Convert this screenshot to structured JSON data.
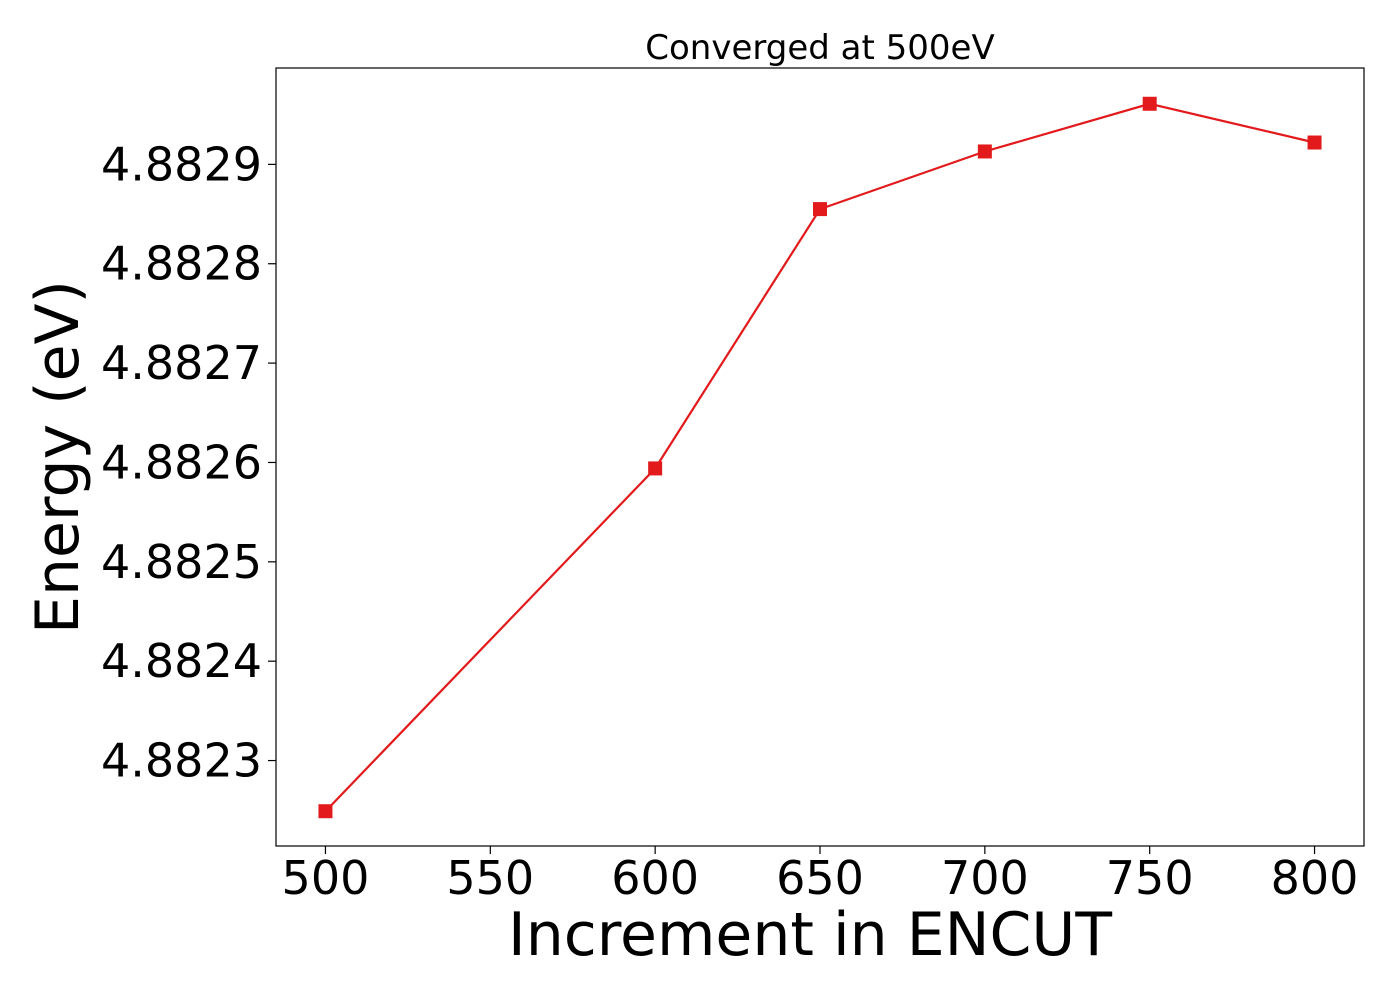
{
  "chart_data": {
    "type": "line",
    "title": "Converged at 500eV",
    "xlabel": "Increment in ENCUT",
    "ylabel": "Energy (eV)",
    "x": [
      500,
      600,
      650,
      700,
      750,
      800
    ],
    "series": [
      {
        "values": [
          4.882249,
          4.882594,
          4.882855,
          4.882913,
          4.882961,
          4.882922
        ],
        "color": "#e31a1c",
        "marker": "square"
      }
    ],
    "xlim": [
      485,
      815
    ],
    "ylim": [
      4.882214,
      4.882997
    ],
    "xticks": [
      500,
      550,
      600,
      650,
      700,
      750,
      800
    ],
    "xtick_labels": [
      "500",
      "550",
      "600",
      "650",
      "700",
      "750",
      "800"
    ],
    "yticks": [
      4.8823,
      4.8824,
      4.8825,
      4.8826,
      4.8827,
      4.8828,
      4.8829
    ],
    "ytick_labels": [
      "4.8823",
      "4.8824",
      "4.8825",
      "4.8826",
      "4.8827",
      "4.8828",
      "4.8829"
    ],
    "grid": false,
    "legend": "none"
  }
}
